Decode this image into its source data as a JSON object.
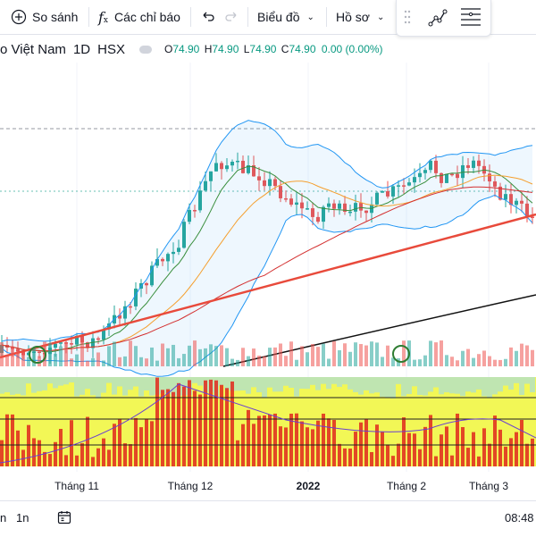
{
  "toolbar": {
    "compare_label": "So sánh",
    "indicators_label": "Các chỉ báo",
    "chart_type_label": "Biểu đồ",
    "profile_label": "Hồ sơ"
  },
  "legend": {
    "symbol_title": "o Việt Nam",
    "interval": "1D",
    "exchange": "HSX",
    "open_prefix": "O",
    "open": "74.90",
    "high_prefix": "H",
    "high": "74.90",
    "low_prefix": "L",
    "low": "74.90",
    "close_prefix": "C",
    "close": "74.90",
    "change": "0.00 (0.00%)",
    "up_color": "#089981"
  },
  "time_axis": {
    "labels": [
      "Tháng 11",
      "Tháng 12",
      "2022",
      "Tháng 2",
      "Tháng 3"
    ],
    "bold_label": "2022"
  },
  "bottom_bar": {
    "range_partial": "n",
    "range_1n": "1n",
    "time": "08:48"
  },
  "colors": {
    "up": "#26a69a",
    "down": "#ef5350",
    "bb_band": "#2196f3",
    "ma_orange": "#f59f2e",
    "ma_green": "#388e3c",
    "ma_red": "#d32f2f",
    "trendline": "#e84a3b",
    "ma_black": "#111111",
    "osc_yellow": "#f2f756",
    "osc_green": "#bfe5b1",
    "osc_red": "#e0281c"
  }
}
